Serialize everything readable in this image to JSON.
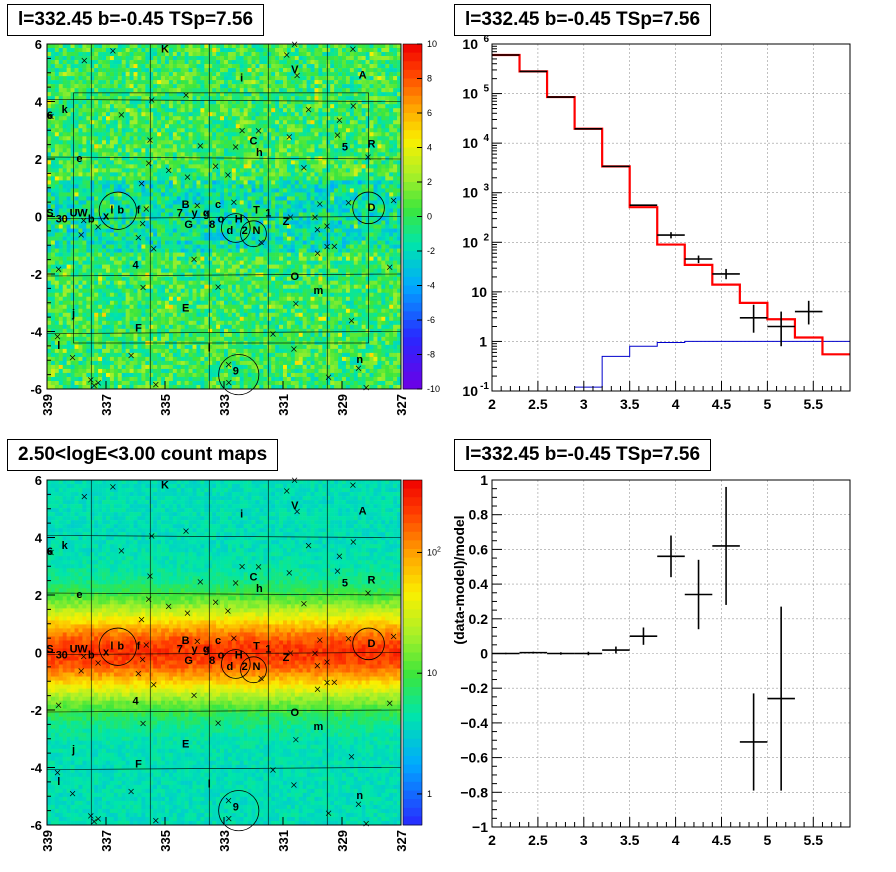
{
  "titles": {
    "top_left": "l=332.45 b=-0.45 TSp=7.56",
    "top_right": "l=332.45 b=-0.45 TSp=7.56",
    "bottom_left": "2.50<logE<3.00 count maps",
    "bottom_right": "l=332.45 b=-0.45 TSp=7.56"
  },
  "colors": {
    "data": "#000000",
    "model": "#ff0000",
    "component": "#0000cc",
    "grid": "#999999"
  },
  "chart_data": [
    {
      "type": "heatmap",
      "panel": "residual-map",
      "x_ticks": [
        "339",
        "337",
        "335",
        "333",
        "331",
        "329",
        "327"
      ],
      "y_ticks": [
        "6",
        "4",
        "2",
        "0",
        "-2",
        "-4",
        "-6"
      ],
      "xlim": [
        339,
        327
      ],
      "ylim": [
        -6,
        6
      ],
      "colorbar_ticks": [
        "10",
        "8",
        "6",
        "4",
        "2",
        "0",
        "-2",
        "-4",
        "-6",
        "-8",
        "-10"
      ],
      "colorbar_range": [
        -10,
        10
      ],
      "source_labels": [
        {
          "t": "K",
          "l": 335.0,
          "b": 5.8
        },
        {
          "t": "i",
          "l": 332.4,
          "b": 4.8
        },
        {
          "t": "V",
          "l": 330.6,
          "b": 5.1
        },
        {
          "t": "A",
          "l": 328.3,
          "b": 4.9
        },
        {
          "t": "6",
          "l": 338.9,
          "b": 3.5
        },
        {
          "t": "k",
          "l": 338.4,
          "b": 3.7
        },
        {
          "t": "C",
          "l": 332.0,
          "b": 2.6
        },
        {
          "t": "h",
          "l": 331.8,
          "b": 2.2
        },
        {
          "t": "5",
          "l": 328.9,
          "b": 2.4
        },
        {
          "t": "R",
          "l": 328.0,
          "b": 2.5
        },
        {
          "t": "e",
          "l": 337.9,
          "b": 2.0
        },
        {
          "t": "S",
          "l": 338.9,
          "b": 0.1
        },
        {
          "t": "3",
          "l": 338.6,
          "b": -0.1
        },
        {
          "t": "0",
          "l": 338.4,
          "b": -0.1
        },
        {
          "t": "U",
          "l": 338.1,
          "b": 0.1
        },
        {
          "t": "W",
          "l": 337.8,
          "b": 0.1
        },
        {
          "t": "b",
          "l": 337.5,
          "b": -0.1
        },
        {
          "t": "x",
          "l": 337.0,
          "b": 0.0
        },
        {
          "t": "l",
          "l": 336.8,
          "b": 0.2
        },
        {
          "t": "b",
          "l": 336.5,
          "b": 0.2
        },
        {
          "t": "f",
          "l": 335.9,
          "b": 0.2
        },
        {
          "t": "B",
          "l": 334.3,
          "b": 0.4
        },
        {
          "t": "7",
          "l": 334.5,
          "b": 0.1
        },
        {
          "t": "y",
          "l": 334.0,
          "b": 0.1
        },
        {
          "t": "g",
          "l": 333.6,
          "b": 0.1
        },
        {
          "t": "c",
          "l": 333.2,
          "b": 0.4
        },
        {
          "t": "G",
          "l": 334.2,
          "b": -0.3
        },
        {
          "t": "8",
          "l": 333.4,
          "b": -0.3
        },
        {
          "t": "o",
          "l": 333.1,
          "b": -0.1
        },
        {
          "t": "H",
          "l": 332.5,
          "b": -0.1
        },
        {
          "t": "T",
          "l": 331.9,
          "b": 0.2
        },
        {
          "t": "1",
          "l": 331.5,
          "b": 0.1
        },
        {
          "t": "Z",
          "l": 330.9,
          "b": -0.2
        },
        {
          "t": "d",
          "l": 332.8,
          "b": -0.5
        },
        {
          "t": "2",
          "l": 332.3,
          "b": -0.5
        },
        {
          "t": "N",
          "l": 331.9,
          "b": -0.5
        },
        {
          "t": "D",
          "l": 328.0,
          "b": 0.3
        },
        {
          "t": "4",
          "l": 336.0,
          "b": -1.7
        },
        {
          "t": "O",
          "l": 330.6,
          "b": -2.1
        },
        {
          "t": "m",
          "l": 329.8,
          "b": -2.6
        },
        {
          "t": "j",
          "l": 338.1,
          "b": -3.4
        },
        {
          "t": "F",
          "l": 335.9,
          "b": -3.9
        },
        {
          "t": "E",
          "l": 334.3,
          "b": -3.2
        },
        {
          "t": "l",
          "l": 338.6,
          "b": -4.5
        },
        {
          "t": "l",
          "l": 333.5,
          "b": -4.6
        },
        {
          "t": "9",
          "l": 332.6,
          "b": -5.4
        },
        {
          "t": "n",
          "l": 328.4,
          "b": -5.0
        }
      ],
      "circles": [
        {
          "l": 336.6,
          "b": 0.2,
          "r": 0.65
        },
        {
          "l": 332.6,
          "b": -0.4,
          "r": 0.5
        },
        {
          "l": 332.0,
          "b": -0.6,
          "r": 0.45
        },
        {
          "l": 328.1,
          "b": 0.3,
          "r": 0.55
        },
        {
          "l": 332.5,
          "b": -5.5,
          "r": 0.7
        }
      ]
    },
    {
      "type": "line",
      "panel": "spectrum",
      "xlim": [
        2,
        5.9
      ],
      "ylim": [
        0.1,
        1000000
      ],
      "yscale": "log",
      "x_ticks": [
        "2",
        "2.5",
        "3",
        "3.5",
        "4",
        "4.5",
        "5",
        "5.5"
      ],
      "y_ticks": [
        "10^-1",
        "1",
        "10",
        "10^2",
        "10^3",
        "10^4",
        "10^5",
        "10^6"
      ],
      "grid": true,
      "data_points": [
        {
          "x": 2.15,
          "y": 600000,
          "xerr": 0.15,
          "yerr_lo": 0,
          "yerr_hi": 0
        },
        {
          "x": 2.45,
          "y": 280000,
          "xerr": 0.15,
          "yerr_lo": 0,
          "yerr_hi": 0
        },
        {
          "x": 2.75,
          "y": 85000,
          "xerr": 0.15,
          "yerr_lo": 0,
          "yerr_hi": 0
        },
        {
          "x": 3.05,
          "y": 19500,
          "xerr": 0.15,
          "yerr_lo": 0,
          "yerr_hi": 0
        },
        {
          "x": 3.35,
          "y": 3400,
          "xerr": 0.15,
          "yerr_lo": 0,
          "yerr_hi": 0
        },
        {
          "x": 3.65,
          "y": 560,
          "xerr": 0.15,
          "yerr_lo": 0,
          "yerr_hi": 0
        },
        {
          "x": 3.95,
          "y": 140,
          "xerr": 0.15,
          "yerr_lo": 20,
          "yerr_hi": 20
        },
        {
          "x": 4.25,
          "y": 46,
          "xerr": 0.15,
          "yerr_lo": 8,
          "yerr_hi": 8
        },
        {
          "x": 4.55,
          "y": 23,
          "xerr": 0.15,
          "yerr_lo": 5,
          "yerr_hi": 6
        },
        {
          "x": 4.85,
          "y": 3,
          "xerr": 0.15,
          "yerr_lo": 1.5,
          "yerr_hi": 2.5
        },
        {
          "x": 5.15,
          "y": 2,
          "xerr": 0.15,
          "yerr_lo": 1.2,
          "yerr_hi": 2
        },
        {
          "x": 5.45,
          "y": 4,
          "xerr": 0.15,
          "yerr_lo": 1.8,
          "yerr_hi": 2.6
        }
      ],
      "model_steps": {
        "edges": [
          2.0,
          2.3,
          2.6,
          2.9,
          3.2,
          3.5,
          3.8,
          4.1,
          4.4,
          4.7,
          5.0,
          5.3,
          5.6,
          5.9
        ],
        "values": [
          600000,
          280000,
          85000,
          19500,
          3400,
          510,
          90,
          35,
          14,
          6,
          2.8,
          1.2,
          0.55
        ]
      },
      "component_steps": {
        "edges": [
          2.9,
          3.2,
          3.5,
          3.8,
          4.1,
          5.9
        ],
        "values": [
          0.12,
          0.5,
          0.8,
          0.95,
          1.0
        ]
      }
    },
    {
      "type": "heatmap",
      "panel": "count-map",
      "x_ticks": [
        "339",
        "337",
        "335",
        "333",
        "331",
        "329",
        "327"
      ],
      "y_ticks": [
        "6",
        "4",
        "2",
        "0",
        "-2",
        "-4",
        "-6"
      ],
      "xlim": [
        339,
        327
      ],
      "ylim": [
        -6,
        6
      ],
      "colorbar_ticks": [
        "10^2",
        "10",
        "1"
      ],
      "colorbar_scale": "log"
    },
    {
      "type": "scatter",
      "panel": "residual-ratio",
      "ylabel": "(data-model)/model",
      "xlim": [
        2,
        5.9
      ],
      "ylim": [
        -1,
        1
      ],
      "x_ticks": [
        "2",
        "2.5",
        "3",
        "3.5",
        "4",
        "4.5",
        "5",
        "5.5"
      ],
      "y_ticks": [
        "1",
        "0.8",
        "0.6",
        "0.4",
        "0.2",
        "0",
        "-0.2",
        "-0.4",
        "-0.6",
        "-0.8",
        "-1"
      ],
      "grid": true,
      "points": [
        {
          "x": 2.15,
          "y": 0.0,
          "xerr": 0.15,
          "yerr": 0.004
        },
        {
          "x": 2.45,
          "y": 0.005,
          "xerr": 0.15,
          "yerr": 0.005
        },
        {
          "x": 2.75,
          "y": 0.0,
          "xerr": 0.15,
          "yerr": 0.007
        },
        {
          "x": 3.05,
          "y": 0.0,
          "xerr": 0.15,
          "yerr": 0.01
        },
        {
          "x": 3.35,
          "y": 0.02,
          "xerr": 0.15,
          "yerr": 0.02
        },
        {
          "x": 3.65,
          "y": 0.1,
          "xerr": 0.15,
          "yerr": 0.05
        },
        {
          "x": 3.95,
          "y": 0.56,
          "xerr": 0.15,
          "yerr": 0.12
        },
        {
          "x": 4.25,
          "y": 0.34,
          "xerr": 0.15,
          "yerr": 0.2
        },
        {
          "x": 4.55,
          "y": 0.62,
          "xerr": 0.15,
          "yerr": 0.34
        },
        {
          "x": 4.85,
          "y": -0.51,
          "xerr": 0.15,
          "yerr": 0.28
        },
        {
          "x": 5.15,
          "y": -0.26,
          "xerr": 0.15,
          "yerr": 0.53
        }
      ]
    }
  ]
}
